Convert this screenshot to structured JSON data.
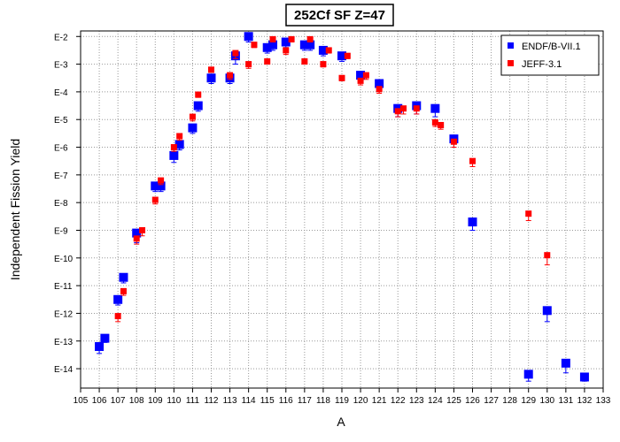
{
  "chart_data": {
    "type": "scatter",
    "title": "252Cf SF Z=47",
    "xlabel": "A",
    "ylabel": "Independent Fission Yield",
    "x_range": [
      105,
      133
    ],
    "y_range": [
      -14.7,
      -1.8
    ],
    "y_scale": "log10",
    "x_ticks": [
      "105",
      "106",
      "107",
      "108",
      "109",
      "110",
      "111",
      "112",
      "113",
      "114",
      "115",
      "116",
      "117",
      "118",
      "119",
      "120",
      "121",
      "122",
      "123",
      "124",
      "125",
      "126",
      "127",
      "128",
      "129",
      "130",
      "131",
      "132",
      "133"
    ],
    "y_ticks": [
      {
        "value": -2,
        "label": "E-2"
      },
      {
        "value": -3,
        "label": "E-3"
      },
      {
        "value": -4,
        "label": "E-4"
      },
      {
        "value": -5,
        "label": "E-5"
      },
      {
        "value": -6,
        "label": "E-6"
      },
      {
        "value": -7,
        "label": "E-7"
      },
      {
        "value": -8,
        "label": "E-8"
      },
      {
        "value": -9,
        "label": "E-9"
      },
      {
        "value": -10,
        "label": "E-10"
      },
      {
        "value": -11,
        "label": "E-11"
      },
      {
        "value": -12,
        "label": "E-12"
      },
      {
        "value": -13,
        "label": "E-13"
      },
      {
        "value": -14,
        "label": "E-14"
      }
    ],
    "grid": true,
    "legend_position": "top-right",
    "series": [
      {
        "name": "ENDF/B-VII.1",
        "color": "#0000ff",
        "marker": "square",
        "points": [
          {
            "x": 106.0,
            "y": -13.2,
            "err": 0.25
          },
          {
            "x": 106.3,
            "y": -12.9,
            "err": 0.15
          },
          {
            "x": 107.0,
            "y": -11.5,
            "err": 0.2
          },
          {
            "x": 107.3,
            "y": -10.7,
            "err": 0.2
          },
          {
            "x": 108.0,
            "y": -9.1,
            "err": 0.35
          },
          {
            "x": 109.0,
            "y": -7.4,
            "err": 0.2
          },
          {
            "x": 109.3,
            "y": -7.4,
            "err": 0.2
          },
          {
            "x": 110.0,
            "y": -6.3,
            "err": 0.25
          },
          {
            "x": 110.3,
            "y": -5.9,
            "err": 0.2
          },
          {
            "x": 111.0,
            "y": -5.3,
            "err": 0.2
          },
          {
            "x": 111.3,
            "y": -4.5,
            "err": 0.2
          },
          {
            "x": 112.0,
            "y": -3.5,
            "err": 0.2
          },
          {
            "x": 113.0,
            "y": -3.5,
            "err": 0.2
          },
          {
            "x": 113.3,
            "y": -2.7,
            "err": 0.3
          },
          {
            "x": 114.0,
            "y": -2.0,
            "err": 0.2
          },
          {
            "x": 115.0,
            "y": -2.4,
            "err": 0.2
          },
          {
            "x": 115.3,
            "y": -2.3,
            "err": 0.2
          },
          {
            "x": 116.0,
            "y": -2.2,
            "err": 0.2
          },
          {
            "x": 117.0,
            "y": -2.3,
            "err": 0.2
          },
          {
            "x": 117.3,
            "y": -2.3,
            "err": 0.2
          },
          {
            "x": 118.0,
            "y": -2.5,
            "err": 0.2
          },
          {
            "x": 119.0,
            "y": -2.7,
            "err": 0.2
          },
          {
            "x": 120.0,
            "y": -3.4,
            "err": 0.2
          },
          {
            "x": 121.0,
            "y": -3.7,
            "err": 0.2
          },
          {
            "x": 122.0,
            "y": -4.6,
            "err": 0.3
          },
          {
            "x": 123.0,
            "y": -4.5,
            "err": 0.3
          },
          {
            "x": 124.0,
            "y": -4.6,
            "err": 0.3
          },
          {
            "x": 125.0,
            "y": -5.7,
            "err": 0.3
          },
          {
            "x": 126.0,
            "y": -8.7,
            "err": 0.3
          },
          {
            "x": 129.0,
            "y": -14.2,
            "err": 0.25
          },
          {
            "x": 130.0,
            "y": -11.9,
            "err": 0.4
          },
          {
            "x": 131.0,
            "y": -13.8,
            "err": 0.35
          },
          {
            "x": 132.0,
            "y": -14.3,
            "err": 0.15
          }
        ]
      },
      {
        "name": "JEFF-3.1",
        "color": "#ff0000",
        "marker": "square",
        "points": [
          {
            "x": 107.0,
            "y": -12.1,
            "err": 0.2
          },
          {
            "x": 107.3,
            "y": -11.2,
            "err": 0.15
          },
          {
            "x": 108.0,
            "y": -9.3,
            "err": 0.2
          },
          {
            "x": 108.3,
            "y": -9.0,
            "err": 0.2
          },
          {
            "x": 109.0,
            "y": -7.9,
            "err": 0.15
          },
          {
            "x": 109.3,
            "y": -7.2,
            "err": 0.15
          },
          {
            "x": 110.0,
            "y": -6.0,
            "err": 0.15
          },
          {
            "x": 110.3,
            "y": -5.6,
            "err": 0.15
          },
          {
            "x": 111.0,
            "y": -4.9,
            "err": 0.15
          },
          {
            "x": 111.3,
            "y": -4.1,
            "err": 0.1
          },
          {
            "x": 112.0,
            "y": -3.2,
            "err": 0.1
          },
          {
            "x": 113.0,
            "y": -3.4,
            "err": 0.15
          },
          {
            "x": 113.3,
            "y": -2.6,
            "err": 0.2
          },
          {
            "x": 114.0,
            "y": -3.0,
            "err": 0.15
          },
          {
            "x": 114.3,
            "y": -2.3,
            "err": 0.1
          },
          {
            "x": 115.0,
            "y": -2.9,
            "err": 0.1
          },
          {
            "x": 115.3,
            "y": -2.1,
            "err": 0.1
          },
          {
            "x": 116.0,
            "y": -2.5,
            "err": 0.15
          },
          {
            "x": 116.3,
            "y": -2.1,
            "err": 0.1
          },
          {
            "x": 117.0,
            "y": -2.9,
            "err": 0.1
          },
          {
            "x": 117.3,
            "y": -2.1,
            "err": 0.1
          },
          {
            "x": 118.0,
            "y": -3.0,
            "err": 0.1
          },
          {
            "x": 118.3,
            "y": -2.5,
            "err": 0.1
          },
          {
            "x": 119.0,
            "y": -3.5,
            "err": 0.1
          },
          {
            "x": 119.3,
            "y": -2.7,
            "err": 0.1
          },
          {
            "x": 120.0,
            "y": -3.6,
            "err": 0.15
          },
          {
            "x": 120.3,
            "y": -3.4,
            "err": 0.15
          },
          {
            "x": 121.0,
            "y": -3.9,
            "err": 0.15
          },
          {
            "x": 122.0,
            "y": -4.7,
            "err": 0.2
          },
          {
            "x": 122.3,
            "y": -4.6,
            "err": 0.2
          },
          {
            "x": 123.0,
            "y": -4.6,
            "err": 0.2
          },
          {
            "x": 124.0,
            "y": -5.1,
            "err": 0.15
          },
          {
            "x": 124.3,
            "y": -5.2,
            "err": 0.15
          },
          {
            "x": 125.0,
            "y": -5.8,
            "err": 0.2
          },
          {
            "x": 126.0,
            "y": -6.5,
            "err": 0.2
          },
          {
            "x": 129.0,
            "y": -8.4,
            "err": 0.25
          },
          {
            "x": 130.0,
            "y": -9.9,
            "err": 0.35
          }
        ]
      }
    ]
  }
}
